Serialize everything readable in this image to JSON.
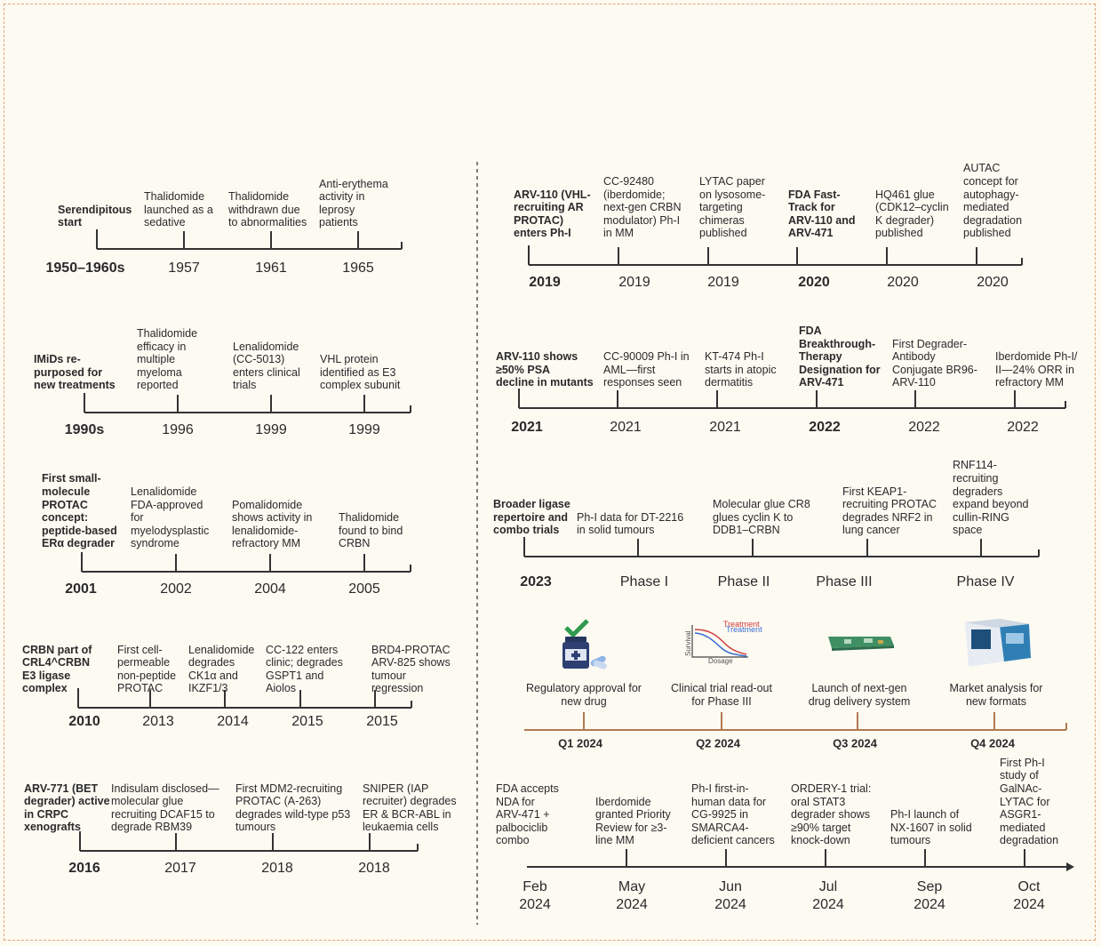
{
  "timelines": [
    {
      "lead": "Serendipitous\nstart",
      "lead_label": "1950–1960s",
      "events": [
        {
          "text": "Thalidomide\nlaunched as a\nsedative",
          "label": "1957"
        },
        {
          "text": "Thalidomide\nwithdrawn due\nto abnormalities",
          "label": "1961"
        },
        {
          "text": "Anti-erythema\nactivity in\nleprosy\npatients",
          "label": "1965"
        }
      ]
    },
    {
      "lead": "IMiDs re-\npurposed for\nnew treatments",
      "lead_label": "1990s",
      "events": [
        {
          "text": "Thalidomide\nefficacy in\nmultiple\nmyeloma\nreported",
          "label": "1996"
        },
        {
          "text": "Lenalidomide\n(CC-5013)\nenters clinical\ntrials",
          "label": "1999"
        },
        {
          "text": "VHL protein\nidentified as E3\ncomplex subunit",
          "label": "1999"
        }
      ]
    },
    {
      "lead": "First small-\nmolecule\nPROTAC\nconcept:\npeptide-based\nERα degrader",
      "lead_label": "2001",
      "events": [
        {
          "text": "Lenalidomide\nFDA-approved\nfor\nmyelodysplastic\nsyndrome",
          "label": "2002"
        },
        {
          "text": "Pomalidomide\nshows activity in\nlenalidomide-\nrefractory MM",
          "label": "2004"
        },
        {
          "text": "Thalidomide\nfound to bind\nCRBN",
          "label": "2005"
        }
      ]
    },
    {
      "lead": "CRBN part of\nCRL4^CRBN\nE3 ligase\ncomplex",
      "lead_label": "2010",
      "events": [
        {
          "text": "First cell-\npermeable\nnon-peptide\nPROTAC",
          "label": "2013"
        },
        {
          "text": "Lenalidomide\ndegrades\nCK1α and\nIKZF1/3",
          "label": "2014"
        },
        {
          "text": "CC-122 enters\nclinic; degrades\nGSPT1 and\nAiolos",
          "label": "2015"
        },
        {
          "text": "BRD4-PROTAC\nARV-825 shows\ntumour\nregression",
          "label": "2015"
        }
      ]
    },
    {
      "lead": "ARV-771 (BET\ndegrader) active\nin CRPC\nxenografts",
      "lead_label": "2016",
      "events": [
        {
          "text": "Indisulam disclosed—\nmolecular glue\nrecruiting DCAF15 to\ndegrade RBM39",
          "label": "2017"
        },
        {
          "text": "First MDM2-recruiting\nPROTAC (A-263)\ndegrades wild-type p53\ntumours",
          "label": "2018"
        },
        {
          "text": "SNIPER (IAP\nrecruiter) degrades\nER & BCR-ABL in\nleukaemia cells",
          "label": "2018"
        }
      ]
    },
    {
      "lead": "ARV-110 (VHL-\nrecruiting AR\nPROTAC)\nenters Ph-I",
      "lead_label": "2019",
      "events": [
        {
          "text": "CC-92480\n(iberdomide;\nnext-gen CRBN\nmodulator) Ph-I\nin MM",
          "label": "2019"
        },
        {
          "text": "LYTAC paper\non lysosome-\ntargeting\nchimeras\npublished",
          "label": "2019"
        },
        {
          "text": "FDA Fast-\nTrack for\nARV-110 and\nARV-471",
          "label": "2020",
          "emphasis": true
        },
        {
          "text": "HQ461 glue\n(CDK12–cyclin\nK degrader)\npublished",
          "label": "2020"
        },
        {
          "text": "AUTAC\nconcept for\nautophagy-\nmediated\ndegradation\npublished",
          "label": "2020"
        }
      ]
    },
    {
      "lead": "ARV-110 shows\n≥50% PSA\ndecline in mutants",
      "lead_label": "2021",
      "events": [
        {
          "text": "CC-90009 Ph-I in\nAML—first\nresponses seen",
          "label": "2021"
        },
        {
          "text": "KT-474 Ph-I\nstarts in atopic\ndermatitis",
          "label": "2021"
        },
        {
          "text": "FDA\nBreakthrough-\nTherapy\nDesignation for\nARV-471",
          "label": "2022",
          "emphasis": true
        },
        {
          "text": "First Degrader-\nAntibody\nConjugate BR96-\nARV-110",
          "label": "2022"
        },
        {
          "text": "Iberdomide Ph-I/\nII—24% ORR in\nrefractory MM",
          "label": "2022"
        }
      ]
    },
    {
      "lead": "Broader ligase\nrepertoire and\ncombo trials",
      "lead_label": "2023",
      "events": [
        {
          "text": "Ph-I data for DT-2216\nin solid tumours",
          "label": "Phase I"
        },
        {
          "text": "Molecular glue CR8\nglues cyclin K to\nDDB1–CRBN",
          "label": "Phase II"
        },
        {
          "text": "First KEAP1-\nrecruiting PROTAC\ndegrades NRF2 in\nlung cancer",
          "label": "Phase III"
        },
        {
          "text": "RNF114-\nrecruiting\ndegraders\nexpand beyond\ncullin-RING\nspace",
          "label": "Phase IV"
        }
      ]
    },
    {
      "events": [
        {
          "text": "Regulatory approval for\nnew drug",
          "label": "Q1 2024"
        },
        {
          "text": "Clinical trial read-out\nfor Phase III",
          "label": "Q2 2024"
        },
        {
          "text": "Launch of next-gen\ndrug delivery system",
          "label": "Q3 2024"
        },
        {
          "text": "Market analysis for\nnew formats",
          "label": "Q4 2024"
        }
      ]
    },
    {
      "events": [
        {
          "text": "FDA accepts\nNDA for\nARV-471 +\npalbociclib\ncombo",
          "label": "Feb\n2024"
        },
        {
          "text": "Iberdomide\ngranted Priority\nReview for ≥3-\nline MM",
          "label": "May\n2024"
        },
        {
          "text": "Ph-I first-in-\nhuman data for\nCG-9925 in\nSMARCA4-\ndeficient cancers",
          "label": "Jun\n2024"
        },
        {
          "text": "ORDERY-1 trial:\noral STAT3\ndegrader shows\n≥90% target\nknock-down",
          "label": "Jul\n2024"
        },
        {
          "text": "Ph-I launch of\nNX-1607 in solid\ntumours",
          "label": "Sep\n2024"
        },
        {
          "text": "First Ph-I\nstudy of\nGalNAc-\nLYTAC for\nASGR1-\nmediated\ndegradation",
          "label": "Oct\n2024"
        }
      ]
    }
  ],
  "chart_icon": {
    "series": [
      "Treatment",
      "Treatment"
    ],
    "x_label": "Dosage",
    "y_label": "Survival"
  }
}
